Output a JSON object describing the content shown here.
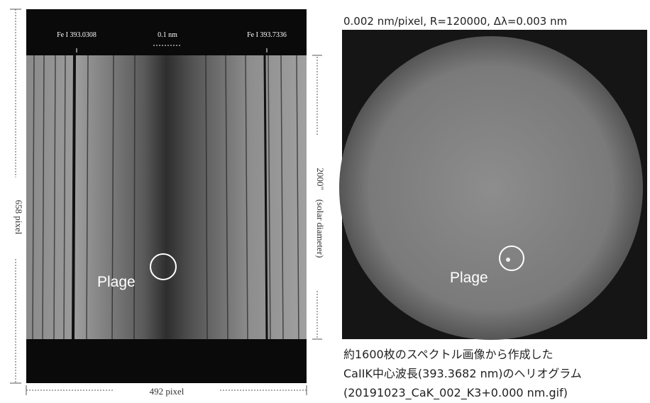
{
  "spectrum_panel": {
    "line_left": "Fe I 393.0308",
    "scale": "0.1 nm",
    "line_right": "Fe I 393.7336",
    "height_label": "658 pixel",
    "width_label": "492 pixel",
    "diameter_label": "2000\"　(solar diameter)",
    "plage_label": "Plage"
  },
  "heliogram_panel": {
    "header": "0.002 nm/pixel, R=120000, Δλ=0.003 nm",
    "plage_label": "Plage"
  },
  "caption": {
    "lines": [
      "約1600枚のスペクトル画像から作成した",
      "CaIIK中心波長(393.3682 nm)のヘリオグラム",
      "(20191023_CaK_002_K3+0.000 nm.gif)"
    ]
  }
}
